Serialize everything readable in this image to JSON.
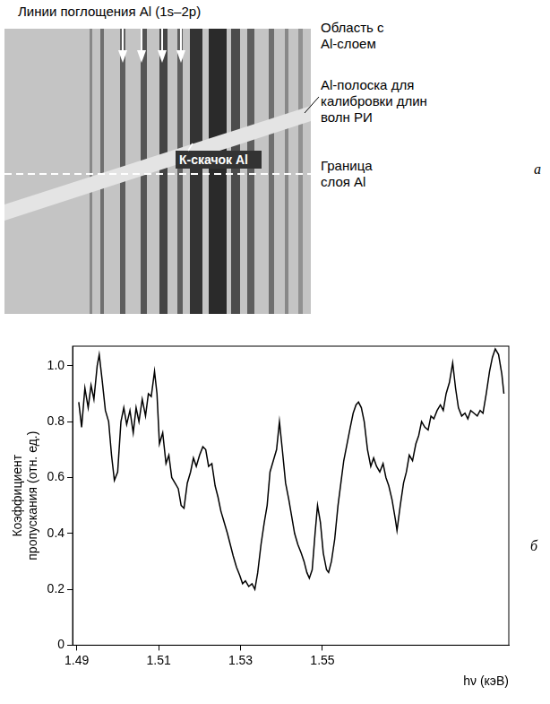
{
  "panel_a": {
    "title": "Линии поглощения Al (1s–2p)",
    "region_label": "Область с Al-слоем",
    "strip_label": "Al-полоска для калибровки длин волн РИ",
    "edge_label": "К-скачок Al",
    "boundary_label": "Граница слоя Al",
    "panel_label": "а"
  },
  "chart_data": {
    "type": "line",
    "panel_label": "б",
    "ylabel": "Коэффициент пропускания (отн. ед.)",
    "xlabel": "hν (кэВ)",
    "color": "#000000",
    "grid": false,
    "xlim": [
      1.489,
      1.5955
    ],
    "xticks": [
      1.49,
      1.51,
      1.53,
      1.55
    ],
    "ylim": [
      0,
      1.07
    ],
    "yticks": [
      0,
      0.2,
      0.4,
      0.6,
      0.8,
      {
        "value": 1,
        "label": "1.0"
      }
    ],
    "x": [
      1.4905,
      1.4912,
      1.492,
      1.4928,
      1.4935,
      1.4942,
      1.495,
      1.4955,
      1.4962,
      1.497,
      1.4978,
      1.4985,
      1.4992,
      1.5,
      1.5008,
      1.5015,
      1.5022,
      1.503,
      1.5038,
      1.5045,
      1.5052,
      1.506,
      1.5068,
      1.5075,
      1.5082,
      1.509,
      1.5096,
      1.5102,
      1.511,
      1.5118,
      1.5125,
      1.5132,
      1.514,
      1.5148,
      1.5155,
      1.5162,
      1.517,
      1.5178,
      1.5185,
      1.5192,
      1.52,
      1.5208,
      1.5215,
      1.5222,
      1.523,
      1.5238,
      1.5245,
      1.5252,
      1.526,
      1.5268,
      1.5275,
      1.5282,
      1.529,
      1.5298,
      1.5305,
      1.5312,
      1.532,
      1.5328,
      1.5335,
      1.5342,
      1.535,
      1.5358,
      1.5365,
      1.5372,
      1.538,
      1.5388,
      1.5395,
      1.5402,
      1.541,
      1.5418,
      1.5425,
      1.5432,
      1.544,
      1.5448,
      1.5455,
      1.5462,
      1.5468,
      1.5475,
      1.5482,
      1.5488,
      1.5495,
      1.5502,
      1.551,
      1.5515,
      1.5522,
      1.553,
      1.5538,
      1.5545,
      1.5552,
      1.556,
      1.5568,
      1.5575,
      1.5582,
      1.5588,
      1.5595,
      1.5602,
      1.561,
      1.5618,
      1.5625,
      1.5632,
      1.564,
      1.5648,
      1.5655,
      1.5662,
      1.567,
      1.5678,
      1.5682,
      1.569,
      1.5698,
      1.5705,
      1.5712,
      1.572,
      1.5728,
      1.5735,
      1.5742,
      1.575,
      1.5758,
      1.5765,
      1.5772,
      1.578,
      1.5788,
      1.5795,
      1.5802,
      1.581,
      1.5818,
      1.5825,
      1.5832,
      1.584,
      1.5848,
      1.5855,
      1.5862,
      1.587,
      1.5878,
      1.5885,
      1.5892,
      1.59,
      1.5908,
      1.5915,
      1.5922,
      1.593,
      1.5938,
      1.5943
    ],
    "values": [
      0.87,
      0.78,
      0.92,
      0.85,
      0.93,
      0.88,
      1.0,
      1.04,
      0.95,
      0.84,
      0.8,
      0.68,
      0.59,
      0.62,
      0.8,
      0.85,
      0.79,
      0.84,
      0.76,
      0.85,
      0.8,
      0.88,
      0.82,
      0.9,
      0.89,
      0.98,
      0.9,
      0.72,
      0.76,
      0.65,
      0.68,
      0.6,
      0.58,
      0.56,
      0.5,
      0.49,
      0.58,
      0.62,
      0.67,
      0.64,
      0.68,
      0.71,
      0.7,
      0.64,
      0.65,
      0.57,
      0.53,
      0.48,
      0.44,
      0.4,
      0.36,
      0.32,
      0.28,
      0.25,
      0.22,
      0.23,
      0.21,
      0.22,
      0.2,
      0.26,
      0.36,
      0.44,
      0.5,
      0.62,
      0.66,
      0.7,
      0.8,
      0.7,
      0.58,
      0.52,
      0.46,
      0.4,
      0.36,
      0.33,
      0.3,
      0.26,
      0.24,
      0.27,
      0.4,
      0.5,
      0.44,
      0.33,
      0.27,
      0.26,
      0.3,
      0.38,
      0.5,
      0.58,
      0.66,
      0.72,
      0.78,
      0.83,
      0.86,
      0.87,
      0.85,
      0.8,
      0.7,
      0.64,
      0.67,
      0.64,
      0.62,
      0.65,
      0.6,
      0.57,
      0.52,
      0.45,
      0.41,
      0.5,
      0.58,
      0.62,
      0.68,
      0.66,
      0.72,
      0.75,
      0.8,
      0.78,
      0.77,
      0.82,
      0.81,
      0.84,
      0.86,
      0.84,
      0.9,
      0.94,
      1.01,
      0.92,
      0.85,
      0.82,
      0.83,
      0.81,
      0.84,
      0.83,
      0.82,
      0.84,
      0.83,
      0.9,
      0.98,
      1.03,
      1.06,
      1.04,
      0.97,
      0.9
    ]
  }
}
